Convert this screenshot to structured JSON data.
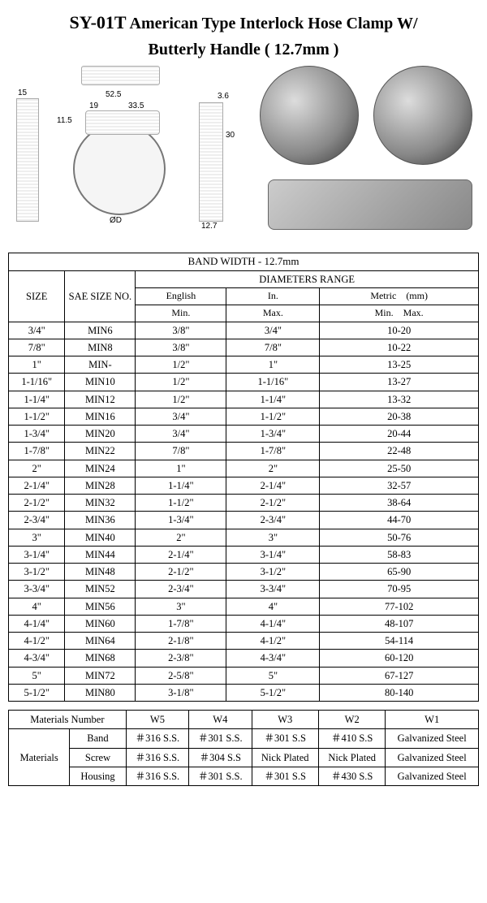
{
  "title": {
    "model": "SY-01T",
    "main": "American Type Interlock Hose Clamp W/",
    "sub": "Butterly Handle ( 12.7mm )"
  },
  "diagram_dims": {
    "overall_w": "52.5",
    "handle_w": "19",
    "body_w": "33.5",
    "band_w_top": "15",
    "handle_h": "11.5",
    "side_t": "3.6",
    "handle_h2": "30",
    "band_w_bot": "12.7",
    "dia": "ØD"
  },
  "spec_table": {
    "band_header": "BAND WIDTH - 12.7mm",
    "col_size": "SIZE",
    "col_sae": "SAE SIZE NO.",
    "col_dia_header": "DIAMETERS RANGE",
    "col_eng": "English",
    "col_in": "In.",
    "col_met": "Metric",
    "col_mm": "(mm)",
    "col_min": "Min.",
    "col_max": "Max.",
    "col_min_max": "Min.    Max.",
    "rows": [
      {
        "size": "3/4\"",
        "sae": "MIN6",
        "emin": "3/8\"",
        "emax": "3/4\"",
        "mm": "10-20"
      },
      {
        "size": "7/8\"",
        "sae": "MIN8",
        "emin": "3/8\"",
        "emax": "7/8\"",
        "mm": "10-22"
      },
      {
        "size": "1\"",
        "sae": "MIN-",
        "emin": "1/2\"",
        "emax": "1\"",
        "mm": "13-25"
      },
      {
        "size": "1-1/16\"",
        "sae": "MIN10",
        "emin": "1/2\"",
        "emax": "1-1/16\"",
        "mm": "13-27"
      },
      {
        "size": "1-1/4\"",
        "sae": "MIN12",
        "emin": "1/2\"",
        "emax": "1-1/4\"",
        "mm": "13-32"
      },
      {
        "size": "1-1/2\"",
        "sae": "MIN16",
        "emin": "3/4\"",
        "emax": "1-1/2\"",
        "mm": "20-38"
      },
      {
        "size": "1-3/4\"",
        "sae": "MIN20",
        "emin": "3/4\"",
        "emax": "1-3/4\"",
        "mm": "20-44"
      },
      {
        "size": "1-7/8\"",
        "sae": "MIN22",
        "emin": "7/8\"",
        "emax": "1-7/8\"",
        "mm": "22-48"
      },
      {
        "size": "2\"",
        "sae": "MIN24",
        "emin": "1\"",
        "emax": "2\"",
        "mm": "25-50"
      },
      {
        "size": "2-1/4\"",
        "sae": "MIN28",
        "emin": "1-1/4\"",
        "emax": "2-1/4\"",
        "mm": "32-57"
      },
      {
        "size": "2-1/2\"",
        "sae": "MIN32",
        "emin": "1-1/2\"",
        "emax": "2-1/2\"",
        "mm": "38-64"
      },
      {
        "size": "2-3/4\"",
        "sae": "MIN36",
        "emin": "1-3/4\"",
        "emax": "2-3/4\"",
        "mm": "44-70"
      },
      {
        "size": "3\"",
        "sae": "MIN40",
        "emin": "2\"",
        "emax": "3\"",
        "mm": "50-76"
      },
      {
        "size": "3-1/4\"",
        "sae": "MIN44",
        "emin": "2-1/4\"",
        "emax": "3-1/4\"",
        "mm": "58-83"
      },
      {
        "size": "3-1/2\"",
        "sae": "MIN48",
        "emin": "2-1/2\"",
        "emax": "3-1/2\"",
        "mm": "65-90"
      },
      {
        "size": "3-3/4\"",
        "sae": "MIN52",
        "emin": "2-3/4\"",
        "emax": "3-3/4\"",
        "mm": "70-95"
      },
      {
        "size": "4\"",
        "sae": "MIN56",
        "emin": "3\"",
        "emax": "4\"",
        "mm": "77-102"
      },
      {
        "size": "4-1/4\"",
        "sae": "MIN60",
        "emin": "1-7/8\"",
        "emax": "4-1/4\"",
        "mm": "48-107"
      },
      {
        "size": "4-1/2\"",
        "sae": "MIN64",
        "emin": "2-1/8\"",
        "emax": "4-1/2\"",
        "mm": "54-114"
      },
      {
        "size": "4-3/4\"",
        "sae": "MIN68",
        "emin": "2-3/8\"",
        "emax": "4-3/4\"",
        "mm": "60-120"
      },
      {
        "size": "5\"",
        "sae": "MIN72",
        "emin": "2-5/8\"",
        "emax": "5\"",
        "mm": "67-127"
      },
      {
        "size": "5-1/2\"",
        "sae": "MIN80",
        "emin": "3-1/8\"",
        "emax": "5-1/2\"",
        "mm": "80-140"
      }
    ]
  },
  "mat_table": {
    "h_num": "Materials Number",
    "cols": [
      "W5",
      "W4",
      "W3",
      "W2",
      "W1"
    ],
    "row_label": "Materials",
    "parts": [
      "Band",
      "Screw",
      "Housing"
    ],
    "cells": [
      [
        "＃316 S.S.",
        "＃301 S.S.",
        "＃301 S.S",
        "＃410 S.S",
        "Galvanized Steel"
      ],
      [
        "＃316 S.S.",
        "＃304 S.S",
        "Nick Plated",
        "Nick Plated",
        "Galvanized Steel"
      ],
      [
        "＃316 S.S.",
        "＃301 S.S.",
        "＃301 S.S",
        "＃430 S.S",
        "Galvanized Steel"
      ]
    ]
  }
}
